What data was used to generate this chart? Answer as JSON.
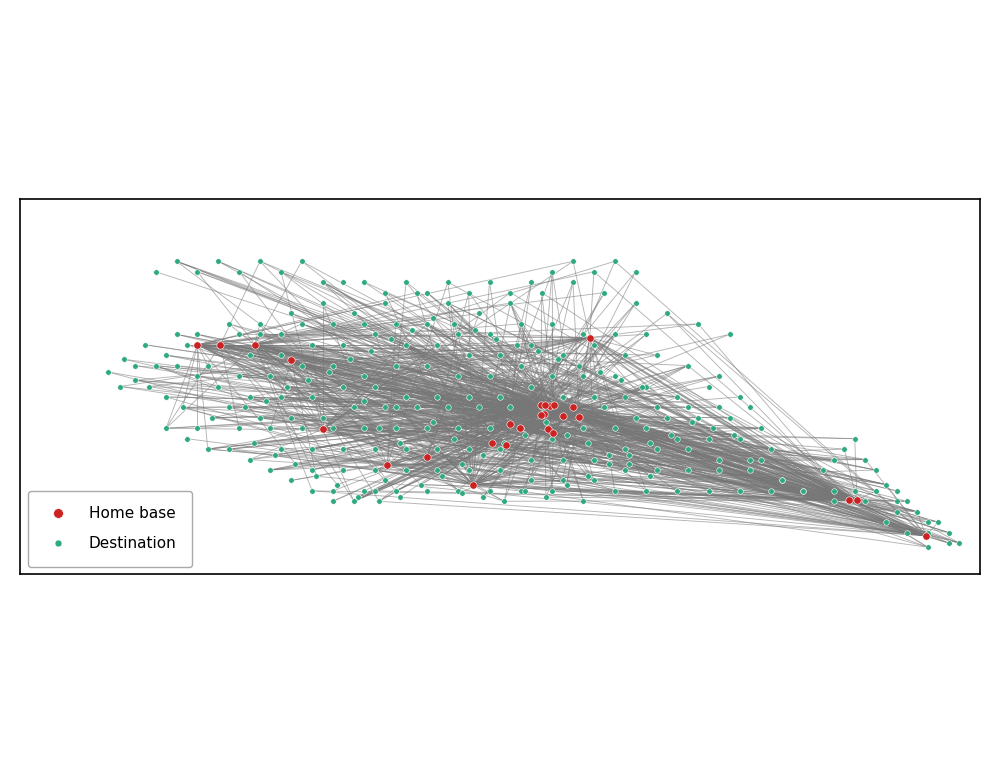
{
  "background_color": "#ffffff",
  "land_color": "#c8c8c8",
  "ocean_color": "#ffffff",
  "home_base_color": "#cc2222",
  "destination_color": "#2eaa7e",
  "line_color": "#777777",
  "line_alpha": 0.55,
  "line_width": 0.65,
  "home_base_size": 28,
  "destination_size": 16,
  "home_base_zorder": 6,
  "destination_zorder": 5,
  "legend_fontsize": 11,
  "xlim": [
    -175,
    -129
  ],
  "ylim": [
    53.5,
    71.5
  ],
  "figsize": [
    10,
    7.73
  ],
  "home_bases": [
    [
      -165.4,
      64.5
    ],
    [
      -163.75,
      64.5
    ],
    [
      -151.05,
      60.5
    ],
    [
      -149.9,
      61.18
    ],
    [
      -149.6,
      61.55
    ],
    [
      -150.05,
      61.62
    ],
    [
      -148.5,
      61.5
    ],
    [
      -147.7,
      64.84
    ],
    [
      -160.5,
      60.45
    ],
    [
      -162.0,
      63.75
    ],
    [
      -166.5,
      64.5
    ],
    [
      -149.42,
      61.6
    ],
    [
      -149.85,
      61.6
    ],
    [
      -150.05,
      61.12
    ],
    [
      -149.7,
      60.48
    ],
    [
      -152.4,
      59.78
    ],
    [
      -151.7,
      59.72
    ],
    [
      -149.45,
      60.28
    ],
    [
      -153.3,
      57.8
    ],
    [
      -157.4,
      58.72
    ],
    [
      -155.5,
      59.12
    ],
    [
      -134.9,
      57.05
    ],
    [
      -135.3,
      57.05
    ],
    [
      -131.6,
      55.35
    ],
    [
      -149.0,
      61.1
    ],
    [
      -151.5,
      60.72
    ],
    [
      -148.2,
      61.05
    ]
  ],
  "destinations": [
    [
      -163.5,
      65.5
    ],
    [
      -162.0,
      66.0
    ],
    [
      -160.5,
      66.5
    ],
    [
      -159.0,
      66.0
    ],
    [
      -157.5,
      66.5
    ],
    [
      -156.0,
      67.0
    ],
    [
      -154.5,
      66.5
    ],
    [
      -153.0,
      66.0
    ],
    [
      -151.5,
      66.5
    ],
    [
      -150.0,
      67.0
    ],
    [
      -148.5,
      67.5
    ],
    [
      -147.0,
      67.0
    ],
    [
      -145.5,
      66.5
    ],
    [
      -144.0,
      66.0
    ],
    [
      -142.5,
      65.5
    ],
    [
      -141.0,
      65.0
    ],
    [
      -164.0,
      64.0
    ],
    [
      -162.5,
      64.0
    ],
    [
      -161.0,
      64.5
    ],
    [
      -159.5,
      64.5
    ],
    [
      -158.0,
      65.0
    ],
    [
      -156.5,
      64.5
    ],
    [
      -155.0,
      64.5
    ],
    [
      -153.5,
      64.0
    ],
    [
      -152.0,
      64.0
    ],
    [
      -150.5,
      64.5
    ],
    [
      -149.0,
      64.0
    ],
    [
      -147.5,
      64.5
    ],
    [
      -146.0,
      64.0
    ],
    [
      -144.5,
      64.0
    ],
    [
      -143.0,
      63.5
    ],
    [
      -141.5,
      63.0
    ],
    [
      -166.0,
      63.5
    ],
    [
      -164.5,
      63.0
    ],
    [
      -163.0,
      63.0
    ],
    [
      -161.5,
      63.5
    ],
    [
      -160.0,
      63.5
    ],
    [
      -158.5,
      63.0
    ],
    [
      -157.0,
      63.5
    ],
    [
      -155.5,
      63.5
    ],
    [
      -154.0,
      63.0
    ],
    [
      -152.5,
      63.0
    ],
    [
      -151.0,
      63.5
    ],
    [
      -149.5,
      63.0
    ],
    [
      -148.0,
      63.0
    ],
    [
      -146.5,
      63.0
    ],
    [
      -145.0,
      62.5
    ],
    [
      -143.5,
      62.0
    ],
    [
      -142.0,
      62.5
    ],
    [
      -140.5,
      62.0
    ],
    [
      -165.5,
      62.5
    ],
    [
      -164.0,
      62.0
    ],
    [
      -162.5,
      62.0
    ],
    [
      -161.0,
      62.0
    ],
    [
      -159.5,
      62.5
    ],
    [
      -158.0,
      62.5
    ],
    [
      -156.5,
      62.0
    ],
    [
      -155.0,
      62.0
    ],
    [
      -153.5,
      62.0
    ],
    [
      -152.0,
      62.0
    ],
    [
      -150.5,
      62.5
    ],
    [
      -149.0,
      62.0
    ],
    [
      -147.5,
      62.0
    ],
    [
      -146.0,
      62.0
    ],
    [
      -144.5,
      61.5
    ],
    [
      -143.0,
      61.5
    ],
    [
      -141.5,
      61.5
    ],
    [
      -140.0,
      61.5
    ],
    [
      -165.0,
      61.5
    ],
    [
      -163.5,
      61.0
    ],
    [
      -162.0,
      61.0
    ],
    [
      -160.5,
      61.0
    ],
    [
      -159.0,
      61.5
    ],
    [
      -157.5,
      61.5
    ],
    [
      -156.0,
      61.5
    ],
    [
      -154.5,
      61.5
    ],
    [
      -153.0,
      61.5
    ],
    [
      -151.5,
      61.5
    ],
    [
      -150.0,
      61.5
    ],
    [
      -148.5,
      61.5
    ],
    [
      -147.0,
      61.5
    ],
    [
      -145.5,
      61.0
    ],
    [
      -144.0,
      61.0
    ],
    [
      -142.5,
      61.0
    ],
    [
      -141.0,
      61.0
    ],
    [
      -139.5,
      60.5
    ],
    [
      -164.5,
      60.5
    ],
    [
      -163.0,
      60.5
    ],
    [
      -161.5,
      60.5
    ],
    [
      -160.0,
      60.5
    ],
    [
      -158.5,
      60.5
    ],
    [
      -157.0,
      60.5
    ],
    [
      -155.5,
      60.5
    ],
    [
      -154.0,
      60.5
    ],
    [
      -152.5,
      60.5
    ],
    [
      -151.0,
      60.5
    ],
    [
      -149.5,
      60.0
    ],
    [
      -148.0,
      60.5
    ],
    [
      -146.5,
      60.5
    ],
    [
      -145.0,
      60.5
    ],
    [
      -143.5,
      60.0
    ],
    [
      -142.0,
      60.0
    ],
    [
      -140.5,
      60.0
    ],
    [
      -139.0,
      59.5
    ],
    [
      -162.5,
      59.5
    ],
    [
      -161.0,
      59.5
    ],
    [
      -159.5,
      59.5
    ],
    [
      -158.0,
      59.5
    ],
    [
      -156.5,
      59.5
    ],
    [
      -155.0,
      59.5
    ],
    [
      -153.5,
      59.5
    ],
    [
      -152.0,
      59.5
    ],
    [
      -150.5,
      59.0
    ],
    [
      -149.0,
      59.0
    ],
    [
      -147.5,
      59.0
    ],
    [
      -146.0,
      59.5
    ],
    [
      -144.5,
      59.5
    ],
    [
      -143.0,
      59.5
    ],
    [
      -141.5,
      59.0
    ],
    [
      -140.0,
      59.0
    ],
    [
      -161.0,
      58.5
    ],
    [
      -159.5,
      58.5
    ],
    [
      -158.0,
      58.5
    ],
    [
      -156.5,
      58.5
    ],
    [
      -155.0,
      58.5
    ],
    [
      -153.5,
      58.5
    ],
    [
      -152.0,
      58.5
    ],
    [
      -150.5,
      58.0
    ],
    [
      -149.0,
      58.0
    ],
    [
      -147.5,
      58.0
    ],
    [
      -146.0,
      58.5
    ],
    [
      -144.5,
      58.5
    ],
    [
      -143.0,
      58.5
    ],
    [
      -141.5,
      58.5
    ],
    [
      -140.0,
      58.5
    ],
    [
      -138.5,
      58.0
    ],
    [
      -160.0,
      57.5
    ],
    [
      -158.5,
      57.5
    ],
    [
      -157.0,
      57.5
    ],
    [
      -155.5,
      57.5
    ],
    [
      -154.0,
      57.5
    ],
    [
      -152.5,
      57.5
    ],
    [
      -151.0,
      57.5
    ],
    [
      -149.5,
      57.5
    ],
    [
      -148.0,
      57.0
    ],
    [
      -146.5,
      57.5
    ],
    [
      -145.0,
      57.5
    ],
    [
      -143.5,
      57.5
    ],
    [
      -142.0,
      57.5
    ],
    [
      -140.5,
      57.5
    ],
    [
      -139.0,
      57.5
    ],
    [
      -137.5,
      57.5
    ],
    [
      -136.0,
      57.0
    ],
    [
      -134.5,
      57.0
    ],
    [
      -133.0,
      56.5
    ],
    [
      -131.5,
      55.5
    ],
    [
      -130.5,
      55.0
    ],
    [
      -131.0,
      56.0
    ],
    [
      -132.0,
      56.5
    ],
    [
      -133.0,
      57.0
    ],
    [
      -134.0,
      57.5
    ],
    [
      -135.0,
      57.5
    ],
    [
      -136.0,
      57.5
    ],
    [
      -137.5,
      57.5
    ],
    [
      -138.5,
      58.0
    ],
    [
      -139.5,
      59.0
    ],
    [
      -165.0,
      65.5
    ],
    [
      -164.5,
      65.0
    ],
    [
      -163.5,
      65.0
    ],
    [
      -162.5,
      65.0
    ],
    [
      -161.5,
      65.5
    ],
    [
      -160.0,
      65.5
    ],
    [
      -158.5,
      65.5
    ],
    [
      -157.0,
      65.5
    ],
    [
      -155.5,
      65.5
    ],
    [
      -154.0,
      65.0
    ],
    [
      -152.5,
      65.0
    ],
    [
      -151.0,
      65.5
    ],
    [
      -149.5,
      65.5
    ],
    [
      -148.0,
      65.0
    ],
    [
      -146.5,
      65.0
    ],
    [
      -145.0,
      65.0
    ],
    [
      -169.5,
      63.5
    ],
    [
      -168.5,
      63.5
    ],
    [
      -167.5,
      63.5
    ],
    [
      -166.5,
      63.0
    ],
    [
      -166.5,
      65.0
    ],
    [
      -167.0,
      64.5
    ],
    [
      -168.0,
      64.0
    ],
    [
      -169.0,
      64.5
    ],
    [
      -170.0,
      63.8
    ],
    [
      -167.5,
      65.0
    ],
    [
      -160.5,
      67.5
    ],
    [
      -159.5,
      67.5
    ],
    [
      -158.5,
      67.5
    ],
    [
      -157.5,
      67.0
    ],
    [
      -156.5,
      67.5
    ],
    [
      -155.5,
      67.0
    ],
    [
      -154.5,
      67.5
    ],
    [
      -153.5,
      67.0
    ],
    [
      -152.5,
      67.5
    ],
    [
      -151.5,
      67.0
    ],
    [
      -150.5,
      67.5
    ],
    [
      -149.5,
      68.0
    ],
    [
      -148.5,
      68.5
    ],
    [
      -147.5,
      68.0
    ],
    [
      -146.5,
      68.5
    ],
    [
      -145.5,
      68.0
    ],
    [
      -161.5,
      68.5
    ],
    [
      -162.5,
      68.0
    ],
    [
      -163.5,
      68.5
    ],
    [
      -164.5,
      68.0
    ],
    [
      -165.5,
      68.5
    ],
    [
      -166.5,
      68.0
    ],
    [
      -167.5,
      68.5
    ],
    [
      -168.5,
      68.0
    ],
    [
      -157.8,
      60.5
    ],
    [
      -157.0,
      61.5
    ],
    [
      -158.5,
      61.8
    ],
    [
      -156.8,
      59.8
    ],
    [
      -155.2,
      60.8
    ],
    [
      -154.2,
      60.0
    ],
    [
      -153.8,
      57.4
    ],
    [
      -152.8,
      57.2
    ],
    [
      -151.8,
      57.0
    ],
    [
      -150.8,
      57.5
    ],
    [
      -149.8,
      57.2
    ],
    [
      -148.8,
      57.8
    ],
    [
      -147.8,
      58.2
    ],
    [
      -146.8,
      58.8
    ],
    [
      -145.8,
      59.2
    ],
    [
      -144.8,
      59.8
    ],
    [
      -143.8,
      60.2
    ],
    [
      -142.8,
      60.8
    ],
    [
      -141.8,
      60.5
    ],
    [
      -140.8,
      60.2
    ],
    [
      -164.2,
      61.5
    ],
    [
      -163.2,
      61.8
    ],
    [
      -162.2,
      62.5
    ],
    [
      -161.2,
      62.8
    ],
    [
      -160.2,
      63.2
    ],
    [
      -159.2,
      63.8
    ],
    [
      -158.2,
      64.2
    ],
    [
      -157.2,
      64.8
    ],
    [
      -156.2,
      65.2
    ],
    [
      -155.2,
      65.8
    ],
    [
      -154.2,
      65.5
    ],
    [
      -153.2,
      65.2
    ],
    [
      -152.2,
      64.8
    ],
    [
      -151.2,
      64.5
    ],
    [
      -150.2,
      64.2
    ],
    [
      -149.2,
      63.8
    ],
    [
      -148.2,
      63.5
    ],
    [
      -147.2,
      63.2
    ],
    [
      -146.2,
      62.8
    ],
    [
      -145.2,
      62.5
    ],
    [
      -165.8,
      61.0
    ],
    [
      -166.5,
      60.5
    ],
    [
      -167.2,
      61.5
    ],
    [
      -168.0,
      62.0
    ],
    [
      -168.8,
      62.5
    ],
    [
      -169.5,
      62.8
    ],
    [
      -170.2,
      62.5
    ],
    [
      -170.8,
      63.2
    ],
    [
      -163.8,
      59.8
    ],
    [
      -162.8,
      59.2
    ],
    [
      -161.8,
      58.8
    ],
    [
      -160.8,
      58.2
    ],
    [
      -159.8,
      57.8
    ],
    [
      -158.8,
      57.2
    ],
    [
      -157.8,
      57.0
    ],
    [
      -156.8,
      57.2
    ],
    [
      -155.8,
      57.8
    ],
    [
      -154.8,
      58.2
    ],
    [
      -153.8,
      58.8
    ],
    [
      -152.8,
      59.2
    ],
    [
      -151.8,
      59.8
    ],
    [
      -150.8,
      60.2
    ],
    [
      -149.8,
      60.8
    ],
    [
      -148.8,
      60.2
    ],
    [
      -147.8,
      59.8
    ],
    [
      -146.8,
      59.2
    ],
    [
      -145.8,
      58.8
    ],
    [
      -144.8,
      58.2
    ],
    [
      -136.5,
      58.5
    ],
    [
      -136.0,
      59.0
    ],
    [
      -135.5,
      59.5
    ],
    [
      -135.0,
      60.0
    ],
    [
      -134.5,
      59.0
    ],
    [
      -134.0,
      58.5
    ],
    [
      -133.5,
      57.8
    ],
    [
      -133.0,
      57.5
    ],
    [
      -132.5,
      57.0
    ],
    [
      -132.0,
      56.5
    ],
    [
      -131.5,
      56.0
    ],
    [
      -130.5,
      55.5
    ],
    [
      -130.0,
      55.0
    ],
    [
      -131.5,
      54.8
    ],
    [
      -132.5,
      55.5
    ],
    [
      -133.5,
      56.0
    ],
    [
      -157.5,
      58.0
    ],
    [
      -158.0,
      57.5
    ],
    [
      -159.0,
      57.0
    ],
    [
      -160.0,
      57.0
    ],
    [
      -161.0,
      57.5
    ],
    [
      -162.0,
      58.0
    ],
    [
      -163.0,
      58.5
    ],
    [
      -164.0,
      59.0
    ],
    [
      -165.0,
      59.5
    ],
    [
      -166.0,
      59.5
    ],
    [
      -167.0,
      60.0
    ],
    [
      -168.0,
      60.5
    ]
  ]
}
